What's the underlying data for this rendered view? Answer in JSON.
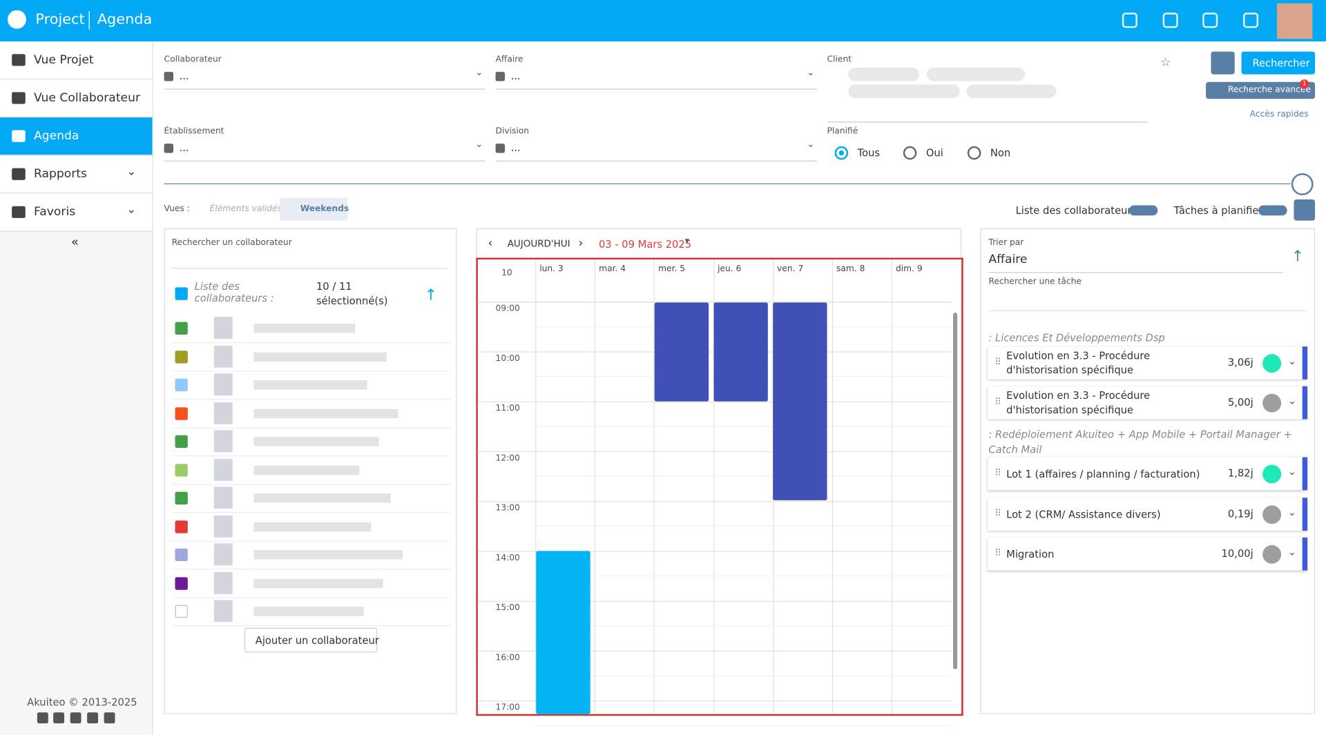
{
  "header": {
    "app": "Project",
    "module": "Agenda"
  },
  "nav": [
    "Vue Projet",
    "Vue Collaborateur",
    "Agenda",
    "Rapports",
    "Favoris"
  ],
  "footer": "Akuiteo © 2013-2025",
  "filters": {
    "collaborateur": "Collaborateur",
    "affaire": "Affaire",
    "client": "Client",
    "etablissement": "Établissement",
    "division": "Division",
    "planifie": "Planifié",
    "placeholder": "...",
    "radios": [
      "Tous",
      "Oui",
      "Non"
    ],
    "search": "Rechercher",
    "advanced": "Recherche avancée",
    "badge": "1",
    "quick": "Accès rapides"
  },
  "views": {
    "label": "Vues :",
    "validated": "Éléments validés",
    "weekends": "Weekends",
    "collab_list": "Liste des collaborateurs",
    "tasks_toggle": "Tâches à planifier"
  },
  "collab": {
    "search": "Rechercher un collaborateur",
    "list": "Liste des collaborateurs :",
    "count": "10 / 11",
    "selected": "sélectionné(s)",
    "add": "Ajouter un collaborateur"
  },
  "calendar": {
    "today": "AUJOURD'HUI",
    "range": "03 - 09 Mars 2025",
    "week": "10",
    "days": [
      "lun. 3",
      "mar. 4",
      "mer. 5",
      "jeu. 6",
      "ven. 7",
      "sam. 8",
      "dim. 9"
    ],
    "hours": [
      "09:00",
      "10:00",
      "11:00",
      "12:00",
      "13:00",
      "14:00",
      "15:00",
      "16:00",
      "17:00"
    ]
  },
  "tasks": {
    "sort_label": "Trier par",
    "sort": "Affaire",
    "search": "Rechercher une tâche",
    "groups": [
      {
        "name": ": Licences Et Développements Dsp",
        "items": [
          {
            "name": "Evolution en 3.3 - Procédure d'historisation spécifique",
            "value": "3,06j"
          },
          {
            "name": "Evolution en 3.3 - Procédure d'historisation spécifique",
            "value": "5,00j"
          }
        ]
      },
      {
        "name": ": Redéploiement Akuiteo + App Mobile + Portail Manager + Catch Mail",
        "items": [
          {
            "name": "Lot 1 (affaires / planning / facturation)",
            "value": "1,82j"
          },
          {
            "name": "Lot 2 (CRM/ Assistance divers)",
            "value": "0,19j"
          },
          {
            "name": "Migration",
            "value": "10,00j"
          }
        ]
      }
    ]
  }
}
